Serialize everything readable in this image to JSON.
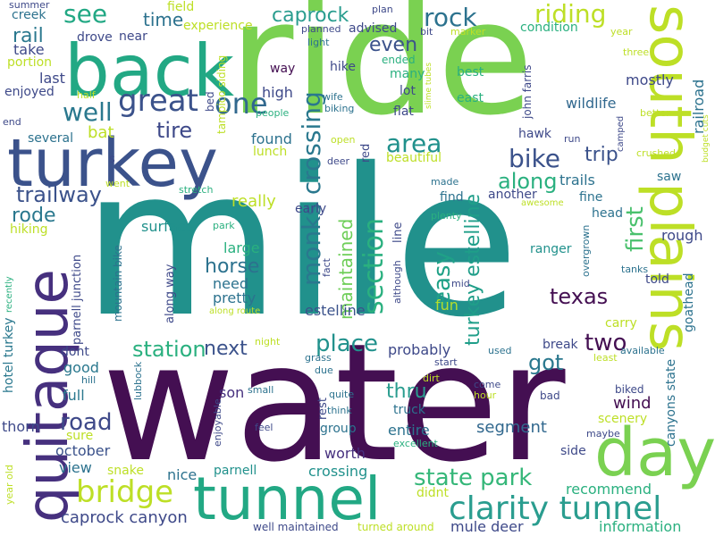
{
  "words": [
    {
      "text": "water",
      "color": "#440f52"
    },
    {
      "text": "mile",
      "color": "#21918c"
    },
    {
      "text": "ride",
      "color": "#7ad151"
    },
    {
      "text": "back",
      "color": "#22a884"
    },
    {
      "text": "turkey",
      "color": "#3b528b"
    },
    {
      "text": "tunnel",
      "color": "#22a884"
    },
    {
      "text": "south plains",
      "color": "#bddf26"
    },
    {
      "text": "quitaque",
      "color": "#46307e"
    },
    {
      "text": "day",
      "color": "#7ad151"
    },
    {
      "text": "clarity tunnel",
      "color": "#2a9d8f"
    },
    {
      "text": "bridge",
      "color": "#bddf26"
    },
    {
      "text": "one",
      "color": "#31688e"
    },
    {
      "text": "monks crossing",
      "color": "#2a788e"
    },
    {
      "text": "section",
      "color": "#2ab07f"
    },
    {
      "text": "great",
      "color": "#3b528b"
    },
    {
      "text": "well",
      "color": "#2a788e"
    },
    {
      "text": "area",
      "color": "#21918c"
    },
    {
      "text": "turkey estelline",
      "color": "#1f9e89"
    },
    {
      "text": "riding",
      "color": "#bddf26"
    },
    {
      "text": "rock",
      "color": "#2c728e"
    },
    {
      "text": "see",
      "color": "#22a884"
    },
    {
      "text": "caprock",
      "color": "#2a9d8f"
    },
    {
      "text": "state park",
      "color": "#35b779"
    },
    {
      "text": "bike",
      "color": "#3b528b"
    },
    {
      "text": "along",
      "color": "#2ab07f"
    },
    {
      "text": "easy",
      "color": "#1fa187"
    },
    {
      "text": "maintained",
      "color": "#6ece58"
    },
    {
      "text": "trailway",
      "color": "#3b528b"
    },
    {
      "text": "rode",
      "color": "#2a788e"
    },
    {
      "text": "horse",
      "color": "#2c728e"
    },
    {
      "text": "texas",
      "color": "#440f52"
    },
    {
      "text": "first",
      "color": "#4ac16d"
    },
    {
      "text": "station",
      "color": "#2ab07f"
    },
    {
      "text": "place",
      "color": "#21918c"
    },
    {
      "text": "next",
      "color": "#3b528b"
    },
    {
      "text": "got",
      "color": "#2a788e"
    },
    {
      "text": "two",
      "color": "#440f52"
    },
    {
      "text": "road",
      "color": "#3e4989"
    },
    {
      "text": "thru",
      "color": "#2a9d8f"
    },
    {
      "text": "caprock canyon",
      "color": "#3e4989"
    },
    {
      "text": "recommend",
      "color": "#2ab07f"
    },
    {
      "text": "information",
      "color": "#2ab07f"
    },
    {
      "text": "mule deer",
      "color": "#3e4989"
    },
    {
      "text": "segment",
      "color": "#31688e"
    },
    {
      "text": "even",
      "color": "#3b528b"
    },
    {
      "text": "tire",
      "color": "#3e4989"
    },
    {
      "text": "trip",
      "color": "#3b528b"
    },
    {
      "text": "time",
      "color": "#2c728e"
    },
    {
      "text": "rail",
      "color": "#2a788e"
    },
    {
      "text": "bat",
      "color": "#bddf26"
    },
    {
      "text": "wildlife",
      "color": "#31688e"
    },
    {
      "text": "surface",
      "color": "#21918c"
    },
    {
      "text": "hiking",
      "color": "#bddf26"
    },
    {
      "text": "rough",
      "color": "#3e4989"
    },
    {
      "text": "ranger",
      "color": "#21918c"
    },
    {
      "text": "mostly",
      "color": "#3e4989"
    },
    {
      "text": "trails",
      "color": "#2c728e"
    },
    {
      "text": "wind",
      "color": "#440f52"
    },
    {
      "text": "estelline",
      "color": "#3b528b"
    },
    {
      "text": "probably",
      "color": "#3e4989"
    },
    {
      "text": "entire",
      "color": "#2c728e"
    },
    {
      "text": "crossing",
      "color": "#21918c"
    },
    {
      "text": "worth",
      "color": "#46307e"
    },
    {
      "text": "parnell",
      "color": "#21918c"
    },
    {
      "text": "nice",
      "color": "#2c728e"
    },
    {
      "text": "view",
      "color": "#2c728e"
    },
    {
      "text": "october",
      "color": "#3b528b"
    },
    {
      "text": "snake",
      "color": "#bddf26"
    },
    {
      "text": "thorn",
      "color": "#3e4989"
    },
    {
      "text": "full",
      "color": "#2a788e"
    },
    {
      "text": "good",
      "color": "#2a788e"
    },
    {
      "text": "dont",
      "color": "#3e4989"
    },
    {
      "text": "son",
      "color": "#46307e"
    },
    {
      "text": "fun",
      "color": "#b5de2b"
    },
    {
      "text": "need",
      "color": "#2c728e"
    },
    {
      "text": "pretty",
      "color": "#2c728e"
    },
    {
      "text": "large",
      "color": "#2ab07f"
    },
    {
      "text": "really",
      "color": "#bddf26"
    },
    {
      "text": "early",
      "color": "#3e4989"
    },
    {
      "text": "found",
      "color": "#2c728e"
    },
    {
      "text": "lunch",
      "color": "#bddf26"
    },
    {
      "text": "beautiful",
      "color": "#bddf26"
    },
    {
      "text": "several",
      "color": "#2c728e"
    },
    {
      "text": "enjoyed",
      "color": "#3e4989"
    },
    {
      "text": "last",
      "color": "#3e4989"
    },
    {
      "text": "take",
      "color": "#3e4989"
    },
    {
      "text": "portion",
      "color": "#bddf26"
    },
    {
      "text": "creek",
      "color": "#2c728e"
    },
    {
      "text": "drove",
      "color": "#3e4989"
    },
    {
      "text": "near",
      "color": "#3e4989"
    },
    {
      "text": "experience",
      "color": "#bddf26"
    },
    {
      "text": "field",
      "color": "#bddf26"
    },
    {
      "text": "advised",
      "color": "#3e4989"
    },
    {
      "text": "condition",
      "color": "#2ab07f"
    },
    {
      "text": "railroad",
      "color": "#2c728e"
    },
    {
      "text": "way",
      "color": "#440f52"
    },
    {
      "text": "high",
      "color": "#3e4989"
    },
    {
      "text": "hike",
      "color": "#3e4989"
    },
    {
      "text": "many",
      "color": "#2ab07f"
    },
    {
      "text": "lot",
      "color": "#3e4989"
    },
    {
      "text": "flat",
      "color": "#3e4989"
    },
    {
      "text": "best",
      "color": "#2ab07f"
    },
    {
      "text": "east",
      "color": "#2ab07f"
    },
    {
      "text": "ended",
      "color": "#2ab07f"
    },
    {
      "text": "hawk",
      "color": "#3e4989"
    },
    {
      "text": "another",
      "color": "#3e4989"
    },
    {
      "text": "find",
      "color": "#2c728e"
    },
    {
      "text": "fine",
      "color": "#2c728e"
    },
    {
      "text": "head",
      "color": "#2c728e"
    },
    {
      "text": "saw",
      "color": "#2c728e"
    },
    {
      "text": "told",
      "color": "#3e4989"
    },
    {
      "text": "carry",
      "color": "#bddf26"
    },
    {
      "text": "break",
      "color": "#3e4989"
    },
    {
      "text": "truck",
      "color": "#2c728e"
    },
    {
      "text": "group",
      "color": "#2c728e"
    },
    {
      "text": "side",
      "color": "#3e4989"
    },
    {
      "text": "rest",
      "color": "#3e4989"
    },
    {
      "text": "scenery",
      "color": "#bddf26"
    },
    {
      "text": "biked",
      "color": "#3e4989"
    },
    {
      "text": "bad",
      "color": "#3e4989"
    },
    {
      "text": "canyons state",
      "color": "#2c728e"
    },
    {
      "text": "goathead",
      "color": "#2c728e"
    },
    {
      "text": "parnell junction",
      "color": "#3e4989"
    },
    {
      "text": "mountain bike",
      "color": "#2c728e"
    },
    {
      "text": "along way",
      "color": "#3e4989"
    },
    {
      "text": "hotel turkey",
      "color": "#2a788e"
    },
    {
      "text": "john farris",
      "color": "#3e4989"
    },
    {
      "text": "tampico siding",
      "color": "#bddf26"
    },
    {
      "text": "turned around",
      "color": "#bddf26"
    },
    {
      "text": "well maintained",
      "color": "#3e4989"
    },
    {
      "text": "excellent",
      "color": "#2ab07f"
    },
    {
      "text": "enjoyable",
      "color": "#3e4989"
    },
    {
      "text": "year old",
      "color": "#bddf26"
    },
    {
      "text": "plan",
      "color": "#3e4989"
    },
    {
      "text": "bit",
      "color": "#3e4989"
    },
    {
      "text": "marker",
      "color": "#bddf26"
    },
    {
      "text": "year",
      "color": "#bddf26"
    },
    {
      "text": "three",
      "color": "#bddf26"
    },
    {
      "text": "planned",
      "color": "#3e4989"
    },
    {
      "text": "light",
      "color": "#2c728e"
    },
    {
      "text": "summer",
      "color": "#3e4989"
    },
    {
      "text": "end",
      "color": "#3e4989"
    },
    {
      "text": "half",
      "color": "#bddf26"
    },
    {
      "text": "people",
      "color": "#2ab07f"
    },
    {
      "text": "bed",
      "color": "#3e4989"
    },
    {
      "text": "wife",
      "color": "#2c728e"
    },
    {
      "text": "biking",
      "color": "#2c728e"
    },
    {
      "text": "slime tubes",
      "color": "#bddf26"
    },
    {
      "text": "better",
      "color": "#bddf26"
    },
    {
      "text": "budget cuts",
      "color": "#bddf26"
    },
    {
      "text": "camped",
      "color": "#3e4989"
    },
    {
      "text": "crushed",
      "color": "#bddf26"
    },
    {
      "text": "run",
      "color": "#3e4989"
    },
    {
      "text": "open",
      "color": "#bddf26"
    },
    {
      "text": "deer",
      "color": "#3e4989"
    },
    {
      "text": "red",
      "color": "#3e4989"
    },
    {
      "text": "s",
      "color": "#3e4989"
    },
    {
      "text": "went",
      "color": "#bddf26"
    },
    {
      "text": "stretch",
      "color": "#2ab07f"
    },
    {
      "text": "made",
      "color": "#2c728e"
    },
    {
      "text": "awesome",
      "color": "#bddf26"
    },
    {
      "text": "plenty",
      "color": "#2ab07f"
    },
    {
      "text": "park",
      "color": "#2ab07f"
    },
    {
      "text": "although",
      "color": "#3e4989"
    },
    {
      "text": "line",
      "color": "#3e4989"
    },
    {
      "text": "overgrown",
      "color": "#2c728e"
    },
    {
      "text": "tanks",
      "color": "#2c728e"
    },
    {
      "text": "mid",
      "color": "#3e4989"
    },
    {
      "text": "fact",
      "color": "#3e4989"
    },
    {
      "text": "along route",
      "color": "#bddf26"
    },
    {
      "text": "recently",
      "color": "#2ab07f"
    },
    {
      "text": "night",
      "color": "#bddf26"
    },
    {
      "text": "grass",
      "color": "#2c728e"
    },
    {
      "text": "due",
      "color": "#2c728e"
    },
    {
      "text": "used",
      "color": "#2c728e"
    },
    {
      "text": "least",
      "color": "#bddf26"
    },
    {
      "text": "available",
      "color": "#2c728e"
    },
    {
      "text": "start",
      "color": "#3e4989"
    },
    {
      "text": "dirt",
      "color": "#bddf26"
    },
    {
      "text": "hill",
      "color": "#2c728e"
    },
    {
      "text": "lubbock",
      "color": "#2c728e"
    },
    {
      "text": "small",
      "color": "#2c728e"
    },
    {
      "text": "quite",
      "color": "#2c728e"
    },
    {
      "text": "come",
      "color": "#3e4989"
    },
    {
      "text": "hour",
      "color": "#bddf26"
    },
    {
      "text": "think",
      "color": "#2c728e"
    },
    {
      "text": "feel",
      "color": "#3e4989"
    },
    {
      "text": "sure",
      "color": "#bddf26"
    },
    {
      "text": "didnt",
      "color": "#bddf26"
    },
    {
      "text": "maybe",
      "color": "#3e4989"
    }
  ]
}
